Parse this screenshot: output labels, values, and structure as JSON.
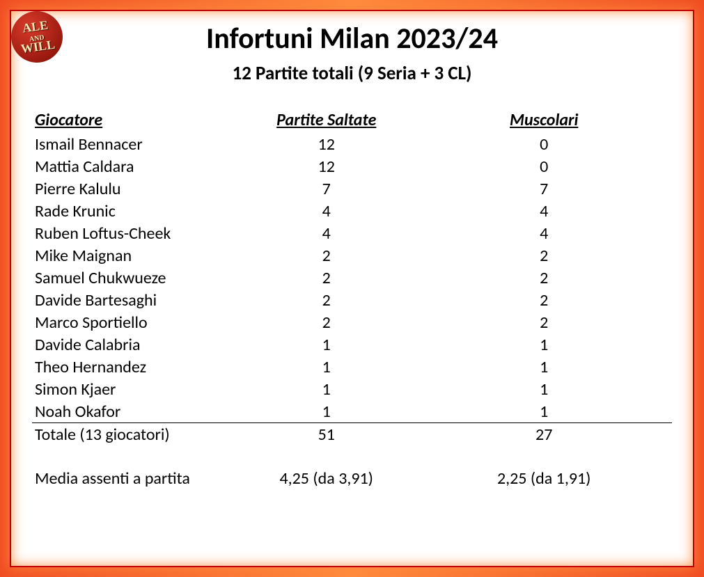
{
  "logo": {
    "line1": "ALE",
    "line2": "WILL"
  },
  "title": "Infortuni Milan 2023/24",
  "subtitle": "12 Partite totali (9 Seria + 3 CL)",
  "columns": {
    "player": "Giocatore",
    "missed": "Partite Saltate",
    "muscolari": "Muscolari"
  },
  "players": [
    {
      "name": "Ismail Bennacer",
      "missed": "12",
      "muscolari": "0"
    },
    {
      "name": "Mattia Caldara",
      "missed": "12",
      "muscolari": "0"
    },
    {
      "name": "Pierre Kalulu",
      "missed": "7",
      "muscolari": "7"
    },
    {
      "name": "Rade Krunic",
      "missed": "4",
      "muscolari": "4"
    },
    {
      "name": "Ruben Loftus-Cheek",
      "missed": "4",
      "muscolari": "4"
    },
    {
      "name": "Mike Maignan",
      "missed": "2",
      "muscolari": "2"
    },
    {
      "name": "Samuel Chukwueze",
      "missed": "2",
      "muscolari": "2"
    },
    {
      "name": "Davide Bartesaghi",
      "missed": "2",
      "muscolari": "2"
    },
    {
      "name": "Marco Sportiello",
      "missed": "2",
      "muscolari": "2"
    },
    {
      "name": "Davide Calabria",
      "missed": "1",
      "muscolari": "1"
    },
    {
      "name": "Theo Hernandez",
      "missed": "1",
      "muscolari": "1"
    },
    {
      "name": "Simon Kjaer",
      "missed": "1",
      "muscolari": "1"
    },
    {
      "name": "Noah Okafor",
      "missed": "1",
      "muscolari": "1"
    }
  ],
  "totals": {
    "label": "Totale (13 giocatori)",
    "missed": "51",
    "muscolari": "27"
  },
  "average": {
    "label": "Media assenti a partita",
    "missed": "4,25 (da 3,91)",
    "muscolari": "2,25 (da 1,91)"
  },
  "style": {
    "border_color": "#c00000",
    "glow_color": "#ff8a3d",
    "background": "#ffffff",
    "text_color": "#000000",
    "title_fontsize": 42,
    "subtitle_fontsize": 27,
    "body_fontsize": 24
  }
}
